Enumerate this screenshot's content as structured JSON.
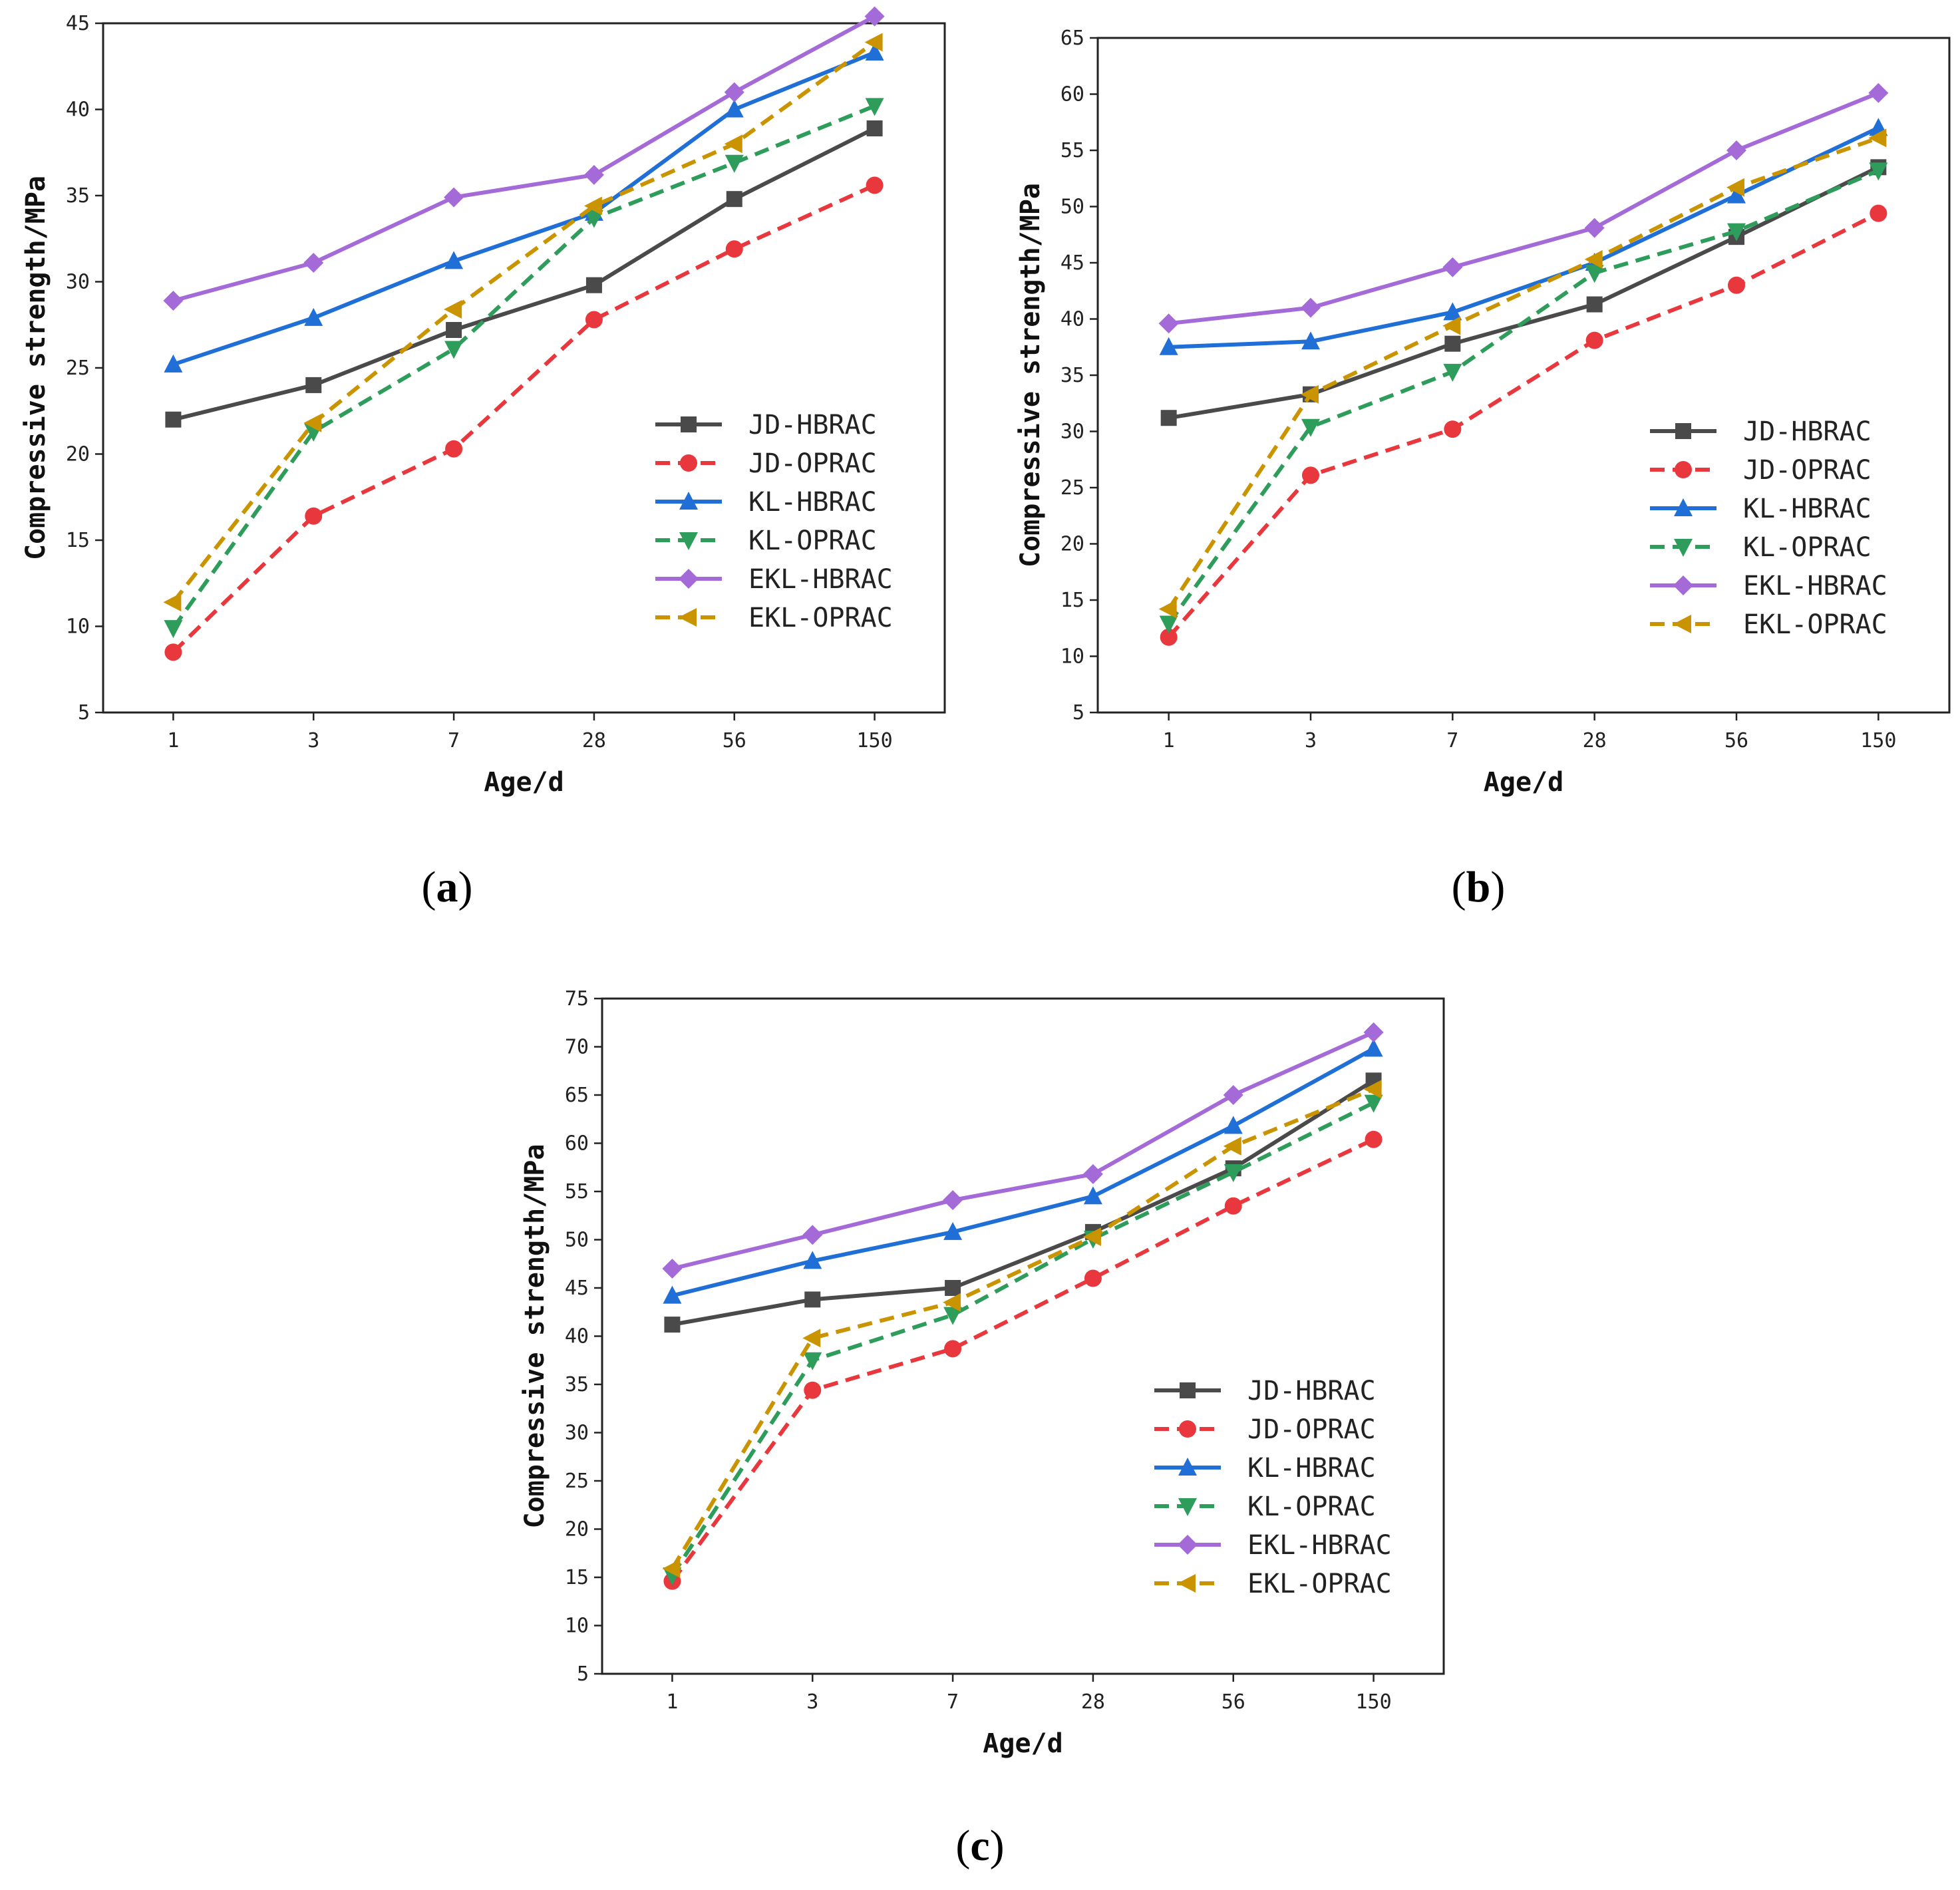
{
  "styles": {
    "JD-HBRAC": {
      "color": "#4a4a4a",
      "dash": "solid",
      "marker": "square"
    },
    "JD-OPRAC": {
      "color": "#e8383d",
      "dash": "dashed",
      "marker": "circle"
    },
    "KL-HBRAC": {
      "color": "#1f6fd6",
      "dash": "solid",
      "marker": "triangle-up"
    },
    "KL-OPRAC": {
      "color": "#2e9c5a",
      "dash": "dashed",
      "marker": "triangle-down"
    },
    "EKL-HBRAC": {
      "color": "#a46ad8",
      "dash": "solid",
      "marker": "diamond"
    },
    "EKL-OPRAC": {
      "color": "#c99400",
      "dash": "dashed",
      "marker": "triangle-left"
    }
  },
  "chart_data": [
    {
      "panel": "a",
      "type": "line",
      "categories": [
        "1",
        "3",
        "7",
        "28",
        "56",
        "150"
      ],
      "xlabel": "Age/d",
      "ylabel": "Compressive strength/MPa",
      "ylim": [
        5,
        45
      ],
      "yticks": [
        5,
        10,
        15,
        20,
        25,
        30,
        35,
        40,
        45
      ],
      "legend_position": "lower-right",
      "series": [
        {
          "name": "JD-HBRAC",
          "values": [
            22.0,
            24.0,
            27.2,
            29.8,
            34.8,
            38.9
          ]
        },
        {
          "name": "JD-OPRAC",
          "values": [
            8.5,
            16.4,
            20.3,
            27.8,
            31.9,
            35.6
          ]
        },
        {
          "name": "KL-HBRAC",
          "values": [
            25.2,
            27.9,
            31.2,
            34.0,
            40.0,
            43.3
          ]
        },
        {
          "name": "KL-OPRAC",
          "values": [
            9.9,
            21.3,
            26.1,
            33.7,
            36.9,
            40.2
          ]
        },
        {
          "name": "EKL-HBRAC",
          "values": [
            28.9,
            31.1,
            34.9,
            36.2,
            41.0,
            45.4
          ]
        },
        {
          "name": "EKL-OPRAC",
          "values": [
            11.4,
            21.8,
            28.4,
            34.4,
            38.0,
            43.9
          ]
        }
      ]
    },
    {
      "panel": "b",
      "type": "line",
      "categories": [
        "1",
        "3",
        "7",
        "28",
        "56",
        "150"
      ],
      "xlabel": "Age/d",
      "ylabel": "Compressive strength/MPa",
      "ylim": [
        5,
        65
      ],
      "yticks": [
        5,
        10,
        15,
        20,
        25,
        30,
        35,
        40,
        45,
        50,
        55,
        60,
        65
      ],
      "legend_position": "lower-right",
      "series": [
        {
          "name": "JD-HBRAC",
          "values": [
            31.2,
            33.3,
            37.8,
            41.3,
            47.3,
            53.5
          ]
        },
        {
          "name": "JD-OPRAC",
          "values": [
            11.7,
            26.1,
            30.2,
            38.1,
            43.0,
            49.4
          ]
        },
        {
          "name": "KL-HBRAC",
          "values": [
            37.5,
            38.0,
            40.6,
            45.0,
            51.0,
            57.0
          ]
        },
        {
          "name": "KL-OPRAC",
          "values": [
            12.9,
            30.4,
            35.3,
            44.1,
            47.8,
            53.2
          ]
        },
        {
          "name": "EKL-HBRAC",
          "values": [
            39.6,
            41.0,
            44.6,
            48.1,
            55.0,
            60.1
          ]
        },
        {
          "name": "EKL-OPRAC",
          "values": [
            14.2,
            33.3,
            39.4,
            45.3,
            51.7,
            56.1
          ]
        }
      ]
    },
    {
      "panel": "c",
      "type": "line",
      "categories": [
        "1",
        "3",
        "7",
        "28",
        "56",
        "150"
      ],
      "xlabel": "Age/d",
      "ylabel": "Compressive strength/MPa",
      "ylim": [
        5,
        75
      ],
      "yticks": [
        5,
        10,
        15,
        20,
        25,
        30,
        35,
        40,
        45,
        50,
        55,
        60,
        65,
        70,
        75
      ],
      "legend_position": "lower-right",
      "series": [
        {
          "name": "JD-HBRAC",
          "values": [
            41.2,
            43.8,
            45.0,
            50.8,
            57.4,
            66.5
          ]
        },
        {
          "name": "JD-OPRAC",
          "values": [
            14.6,
            34.4,
            38.7,
            46.0,
            53.5,
            60.4
          ]
        },
        {
          "name": "KL-HBRAC",
          "values": [
            44.2,
            47.8,
            50.8,
            54.5,
            61.8,
            69.8
          ]
        },
        {
          "name": "KL-OPRAC",
          "values": [
            15.2,
            37.5,
            42.2,
            50.1,
            57.0,
            64.2
          ]
        },
        {
          "name": "EKL-HBRAC",
          "values": [
            47.0,
            50.5,
            54.1,
            56.8,
            65.0,
            71.5
          ]
        },
        {
          "name": "EKL-OPRAC",
          "values": [
            15.9,
            39.8,
            43.5,
            50.3,
            59.7,
            65.6
          ]
        }
      ]
    }
  ],
  "panel_labels": [
    "(a)",
    "(b)",
    "(c)"
  ]
}
